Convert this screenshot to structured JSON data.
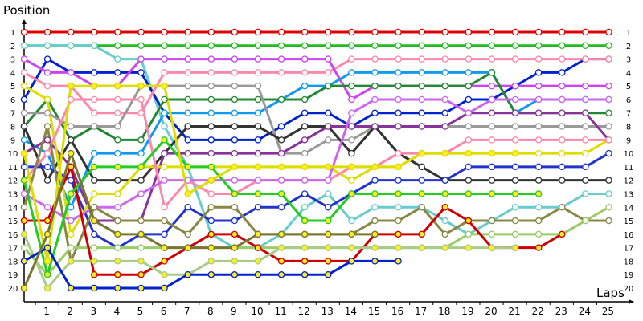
{
  "chart_data": {
    "type": "line",
    "title": "",
    "xlabel": "Laps",
    "ylabel": "Position",
    "x_ticks": [
      "1",
      "2",
      "3",
      "4",
      "5",
      "6",
      "7",
      "8",
      "9",
      "10",
      "11",
      "12",
      "13",
      "14",
      "15",
      "16",
      "17",
      "18",
      "19",
      "20",
      "21",
      "22",
      "23",
      "24",
      "25"
    ],
    "y_ticks": [
      "1",
      "2",
      "3",
      "4",
      "5",
      "6",
      "7",
      "8",
      "9",
      "10",
      "11",
      "12",
      "13",
      "14",
      "15",
      "16",
      "17",
      "18",
      "19",
      "20"
    ],
    "xlim": [
      0,
      25.5
    ],
    "ylim": [
      1,
      20
    ],
    "y_reversed": true,
    "grid": false,
    "legend": "none",
    "series": [
      {
        "color": "#dd0000",
        "fill": "#ffffff",
        "x": [
          0,
          1,
          2,
          3,
          4,
          5,
          6,
          7,
          8,
          9,
          10,
          11,
          12,
          13,
          14,
          15,
          16,
          17,
          18,
          19,
          20,
          21,
          22,
          23,
          24,
          25
        ],
        "y": [
          1,
          1,
          1,
          1,
          1,
          1,
          1,
          1,
          1,
          1,
          1,
          1,
          1,
          1,
          1,
          1,
          1,
          1,
          1,
          1,
          1,
          1,
          1,
          1,
          1,
          1
        ]
      },
      {
        "color": "#22bb22",
        "fill": "#ffffff",
        "x": [
          0,
          1,
          2,
          3,
          4,
          5,
          6,
          7,
          8,
          9,
          10,
          11,
          12,
          13,
          14,
          15,
          16,
          17,
          18,
          19,
          20,
          21,
          22,
          23,
          24,
          25
        ],
        "y": [
          2,
          2,
          2,
          2,
          2,
          2,
          2,
          2,
          2,
          2,
          2,
          2,
          2,
          2,
          2,
          2,
          2,
          2,
          2,
          2,
          2,
          2,
          2,
          2,
          2,
          2
        ]
      },
      {
        "color": "#66cccc",
        "fill": "#ffffff",
        "x": [
          0,
          1,
          2,
          3,
          4,
          5,
          6,
          7,
          8,
          9,
          10,
          11,
          12,
          13,
          14,
          15,
          16,
          17,
          18,
          19,
          20,
          21,
          22,
          23,
          24,
          25
        ],
        "y": [
          2,
          2,
          2,
          2,
          3,
          3,
          8,
          11,
          16,
          17,
          17,
          16,
          14,
          13,
          15,
          14,
          14,
          14,
          15,
          16,
          15,
          14,
          14,
          14,
          13,
          13
        ]
      },
      {
        "color": "#0022cc",
        "fill": "#ffffff",
        "x": [
          0,
          1,
          2,
          3,
          4,
          5,
          6,
          7,
          8,
          9,
          10,
          11,
          12,
          13,
          14,
          15,
          16,
          17,
          18,
          19,
          20,
          21,
          22,
          23,
          24,
          25
        ],
        "y": [
          6,
          3,
          4,
          4,
          4,
          4,
          7,
          9,
          9,
          9,
          9,
          8,
          7,
          7,
          8,
          7,
          7,
          7,
          7,
          6,
          6,
          5,
          4,
          4,
          3,
          3
        ]
      },
      {
        "color": "#ff88aa",
        "fill": "#ffffff",
        "x": [
          0,
          1,
          2,
          3,
          4,
          5,
          6,
          7,
          8,
          9,
          10,
          11,
          12,
          13,
          14,
          15,
          16,
          17,
          18,
          19,
          20,
          21,
          22,
          23,
          24,
          25
        ],
        "y": [
          4,
          5,
          5,
          7,
          7,
          7,
          4,
          4,
          4,
          4,
          4,
          4,
          4,
          4,
          3,
          3,
          3,
          3,
          3,
          3,
          3,
          3,
          3,
          3,
          3,
          3
        ]
      },
      {
        "color": "#cc44ee",
        "fill": "#ffffff",
        "x": [
          0,
          1,
          2,
          3,
          4,
          5,
          6,
          7,
          8,
          9,
          10,
          11,
          12,
          13,
          14,
          15,
          16,
          17,
          18,
          19,
          20,
          21,
          22,
          23,
          24,
          25
        ],
        "y": [
          3,
          4,
          4,
          5,
          5,
          3,
          3,
          3,
          3,
          3,
          3,
          3,
          3,
          3,
          6,
          5,
          5,
          5,
          5,
          5,
          5,
          5,
          5,
          5,
          5,
          5
        ]
      },
      {
        "color": "#1199ee",
        "fill": "#ffffff",
        "x": [
          0,
          1,
          2,
          3,
          4,
          5,
          6,
          7,
          8,
          9,
          10,
          11,
          12,
          13,
          14,
          15,
          16,
          17,
          18,
          19,
          20,
          21,
          22,
          23,
          24,
          25
        ],
        "y": [
          9,
          10,
          14,
          10,
          10,
          10,
          7,
          7,
          7,
          7,
          7,
          6,
          5,
          5,
          4,
          4,
          4,
          4,
          4,
          4,
          4,
          7,
          6,
          6,
          6,
          6
        ]
      },
      {
        "color": "#228833",
        "fill": "#ffffff",
        "x": [
          0,
          1,
          2,
          3,
          4,
          5,
          6,
          7,
          8,
          9,
          10,
          11,
          12,
          13,
          14,
          15,
          16,
          17,
          18,
          19,
          20,
          21,
          22,
          23,
          24,
          25
        ],
        "y": [
          8,
          6,
          9,
          8,
          9,
          9,
          6,
          6,
          6,
          6,
          6,
          6,
          6,
          5,
          5,
          5,
          5,
          5,
          5,
          5,
          4,
          7,
          7,
          7,
          7,
          7
        ]
      },
      {
        "color": "#999999",
        "fill": "#ffffff",
        "x": [
          0,
          1,
          2,
          3,
          4,
          5,
          6,
          7,
          8,
          9,
          10,
          11,
          12,
          13,
          14,
          15,
          16,
          17,
          18,
          19,
          20,
          21,
          22,
          23,
          24,
          25
        ],
        "y": [
          7,
          7,
          8,
          8,
          8,
          5,
          5,
          5,
          5,
          5,
          5,
          10,
          10,
          9,
          9,
          8,
          8,
          8,
          8,
          8,
          8,
          8,
          8,
          8,
          8,
          8
        ]
      },
      {
        "color": "#333333",
        "fill": "#ffffff",
        "x": [
          0,
          1,
          2,
          3,
          4,
          5,
          6,
          7,
          8,
          9,
          10,
          11,
          12,
          13,
          14,
          15,
          16,
          17,
          18,
          19,
          20,
          21,
          22,
          23,
          24,
          25
        ],
        "y": [
          8,
          12,
          9,
          12,
          12,
          12,
          10,
          8,
          8,
          8,
          8,
          9,
          8,
          8,
          10,
          8,
          10,
          11,
          12,
          12,
          12,
          12,
          12,
          12,
          12,
          12
        ]
      },
      {
        "color": "#883399",
        "fill": "#ffffff",
        "x": [
          0,
          1,
          2,
          3,
          4,
          5,
          6,
          7,
          8,
          9,
          10,
          11,
          12,
          13,
          14,
          15,
          16,
          17,
          18,
          19,
          20,
          21,
          22,
          23,
          24,
          25
        ],
        "y": [
          10,
          9,
          11,
          15,
          15,
          15,
          10,
          10,
          10,
          10,
          10,
          10,
          9,
          8,
          8,
          8,
          8,
          8,
          8,
          7,
          7,
          7,
          7,
          7,
          7,
          9
        ]
      },
      {
        "color": "#2233cc",
        "fill": "#ffffff",
        "x": [
          0,
          1,
          2,
          3,
          4,
          5,
          6,
          7,
          8,
          9,
          10,
          11,
          12,
          13,
          14,
          15,
          16,
          17,
          18,
          19,
          20,
          21,
          22,
          23,
          24,
          25
        ],
        "y": [
          11,
          11,
          12,
          16,
          17,
          16,
          16,
          14,
          15,
          15,
          14,
          14,
          13,
          14,
          13,
          12,
          12,
          12,
          12,
          11,
          11,
          11,
          11,
          11,
          11,
          10
        ]
      },
      {
        "color": "#dddd00",
        "fill": "#ffffff",
        "x": [
          0,
          1,
          2,
          3,
          4,
          5,
          6,
          7,
          8,
          9,
          10,
          11,
          12,
          13,
          14,
          15,
          16,
          17,
          18,
          19,
          20,
          21,
          22,
          23,
          24,
          25
        ],
        "y": [
          5,
          6,
          16,
          13,
          13,
          11,
          11,
          11,
          11,
          11,
          11,
          11,
          11,
          11,
          12,
          11,
          11,
          10,
          10,
          10,
          10,
          10,
          10,
          10,
          10,
          9
        ]
      },
      {
        "color": "#ff88aa",
        "fill": "#ffffff",
        "x": [
          0,
          1,
          2,
          3,
          4,
          5,
          6,
          7,
          8,
          9,
          10,
          11,
          12,
          13,
          14,
          15,
          16,
          17,
          18,
          19,
          20,
          21,
          22,
          23,
          24,
          25
        ],
        "y": [
          12,
          10,
          6,
          6,
          6,
          6,
          14,
          12,
          13,
          13,
          12,
          12,
          12,
          12,
          11,
          11,
          10,
          10,
          10,
          9,
          9,
          9,
          9,
          9,
          9,
          9
        ]
      },
      {
        "color": "#cc66ee",
        "fill": "#ffffff",
        "x": [
          0,
          1,
          2,
          3,
          4,
          5,
          6,
          7,
          8,
          9,
          10,
          11,
          12,
          13,
          14,
          15,
          16,
          17,
          18,
          19,
          20,
          21,
          22,
          23,
          24,
          25
        ],
        "y": [
          13,
          14,
          15,
          14,
          14,
          13,
          12,
          12,
          12,
          12,
          12,
          12,
          12,
          12,
          7,
          6,
          6,
          6,
          6,
          7,
          6,
          6,
          6,
          6,
          6,
          6
        ]
      },
      {
        "color": "#888844",
        "fill": "#ffffff",
        "x": [
          0,
          1,
          2,
          3,
          4,
          5,
          6,
          7,
          8,
          9,
          10,
          11,
          12,
          13,
          14,
          15,
          16,
          17,
          18,
          19,
          20,
          21,
          22,
          23,
          24,
          25
        ],
        "y": [
          14,
          8,
          18,
          14,
          15,
          15,
          15,
          16,
          14,
          14,
          16,
          16,
          16,
          16,
          16,
          15,
          15,
          14,
          16,
          15,
          15,
          15,
          15,
          14,
          15,
          15
        ]
      },
      {
        "color": "#99cc66",
        "fill": "#ffffff",
        "x": [
          0,
          1,
          2,
          3,
          4,
          5,
          6,
          7,
          8,
          9,
          10,
          11,
          12,
          13,
          14,
          15,
          16,
          17,
          18,
          19,
          20,
          21,
          22,
          23,
          24,
          25
        ],
        "y": [
          17,
          19,
          17,
          17,
          17,
          17,
          17,
          17,
          17,
          17,
          17,
          17,
          17,
          17,
          17,
          17,
          17,
          17,
          17,
          16,
          16,
          16,
          16,
          16,
          15,
          14
        ]
      },
      {
        "color": "#cc0000",
        "fill": "#ffee22",
        "x": [
          0,
          1,
          2,
          3,
          4,
          5,
          6,
          7,
          8,
          9,
          10,
          11,
          12,
          13,
          14,
          15,
          16,
          17,
          18,
          19,
          20,
          21,
          22,
          23
        ],
        "y": [
          15,
          15,
          11,
          19,
          19,
          19,
          18,
          17,
          16,
          16,
          17,
          18,
          18,
          18,
          18,
          16,
          16,
          16,
          14,
          15,
          17,
          17,
          17,
          16
        ]
      },
      {
        "color": "#22cc22",
        "fill": "#ffee22",
        "x": [
          0,
          1,
          2,
          3,
          4,
          5,
          6,
          7,
          8,
          9,
          10,
          11,
          12,
          13,
          14,
          15,
          16,
          17,
          18,
          19,
          20,
          21,
          22
        ],
        "y": [
          12,
          19,
          13,
          11,
          11,
          11,
          9,
          11,
          11,
          13,
          13,
          13,
          15,
          15,
          13,
          13,
          13,
          13,
          13,
          13,
          13,
          13,
          13
        ]
      },
      {
        "color": "#aacc88",
        "fill": "#ffee22",
        "x": [
          0,
          1,
          2,
          3,
          4,
          5,
          6,
          7,
          8,
          9,
          10,
          11,
          12,
          13,
          14,
          15,
          16,
          17,
          18,
          19,
          20,
          21
        ],
        "y": [
          16,
          20,
          18,
          18,
          18,
          18,
          19,
          19,
          18,
          18,
          18,
          17,
          17,
          17,
          17,
          17,
          17,
          17,
          17,
          17,
          17,
          17
        ]
      },
      {
        "color": "#dddd00",
        "fill": "#ffee22",
        "x": [
          0,
          1,
          2,
          3,
          4,
          5,
          6,
          7,
          8,
          9,
          10,
          11,
          12,
          13,
          14,
          15,
          16,
          17,
          18,
          19,
          20,
          21
        ],
        "y": [
          10,
          18,
          5,
          5,
          5,
          5,
          5,
          13,
          12,
          11,
          11,
          11,
          11,
          11,
          11,
          11,
          11,
          10,
          10,
          10,
          10,
          10
        ]
      },
      {
        "color": "#0022cc",
        "fill": "#ffee22",
        "x": [
          0,
          1,
          2,
          3,
          4,
          5,
          6,
          7,
          8,
          9,
          10,
          11,
          12,
          13,
          14,
          15,
          16
        ],
        "y": [
          18,
          17,
          20,
          20,
          20,
          20,
          20,
          19,
          19,
          19,
          19,
          19,
          19,
          19,
          18,
          18,
          18
        ]
      },
      {
        "color": "#777733",
        "fill": "#ffee22",
        "x": [
          0,
          1,
          2,
          3,
          4,
          5,
          6,
          7,
          8,
          9,
          10,
          11,
          12,
          13,
          14,
          15
        ],
        "y": [
          20,
          16,
          10,
          15,
          16,
          16,
          17,
          17,
          17,
          17,
          16,
          16,
          16,
          16,
          16,
          16
        ]
      }
    ]
  }
}
